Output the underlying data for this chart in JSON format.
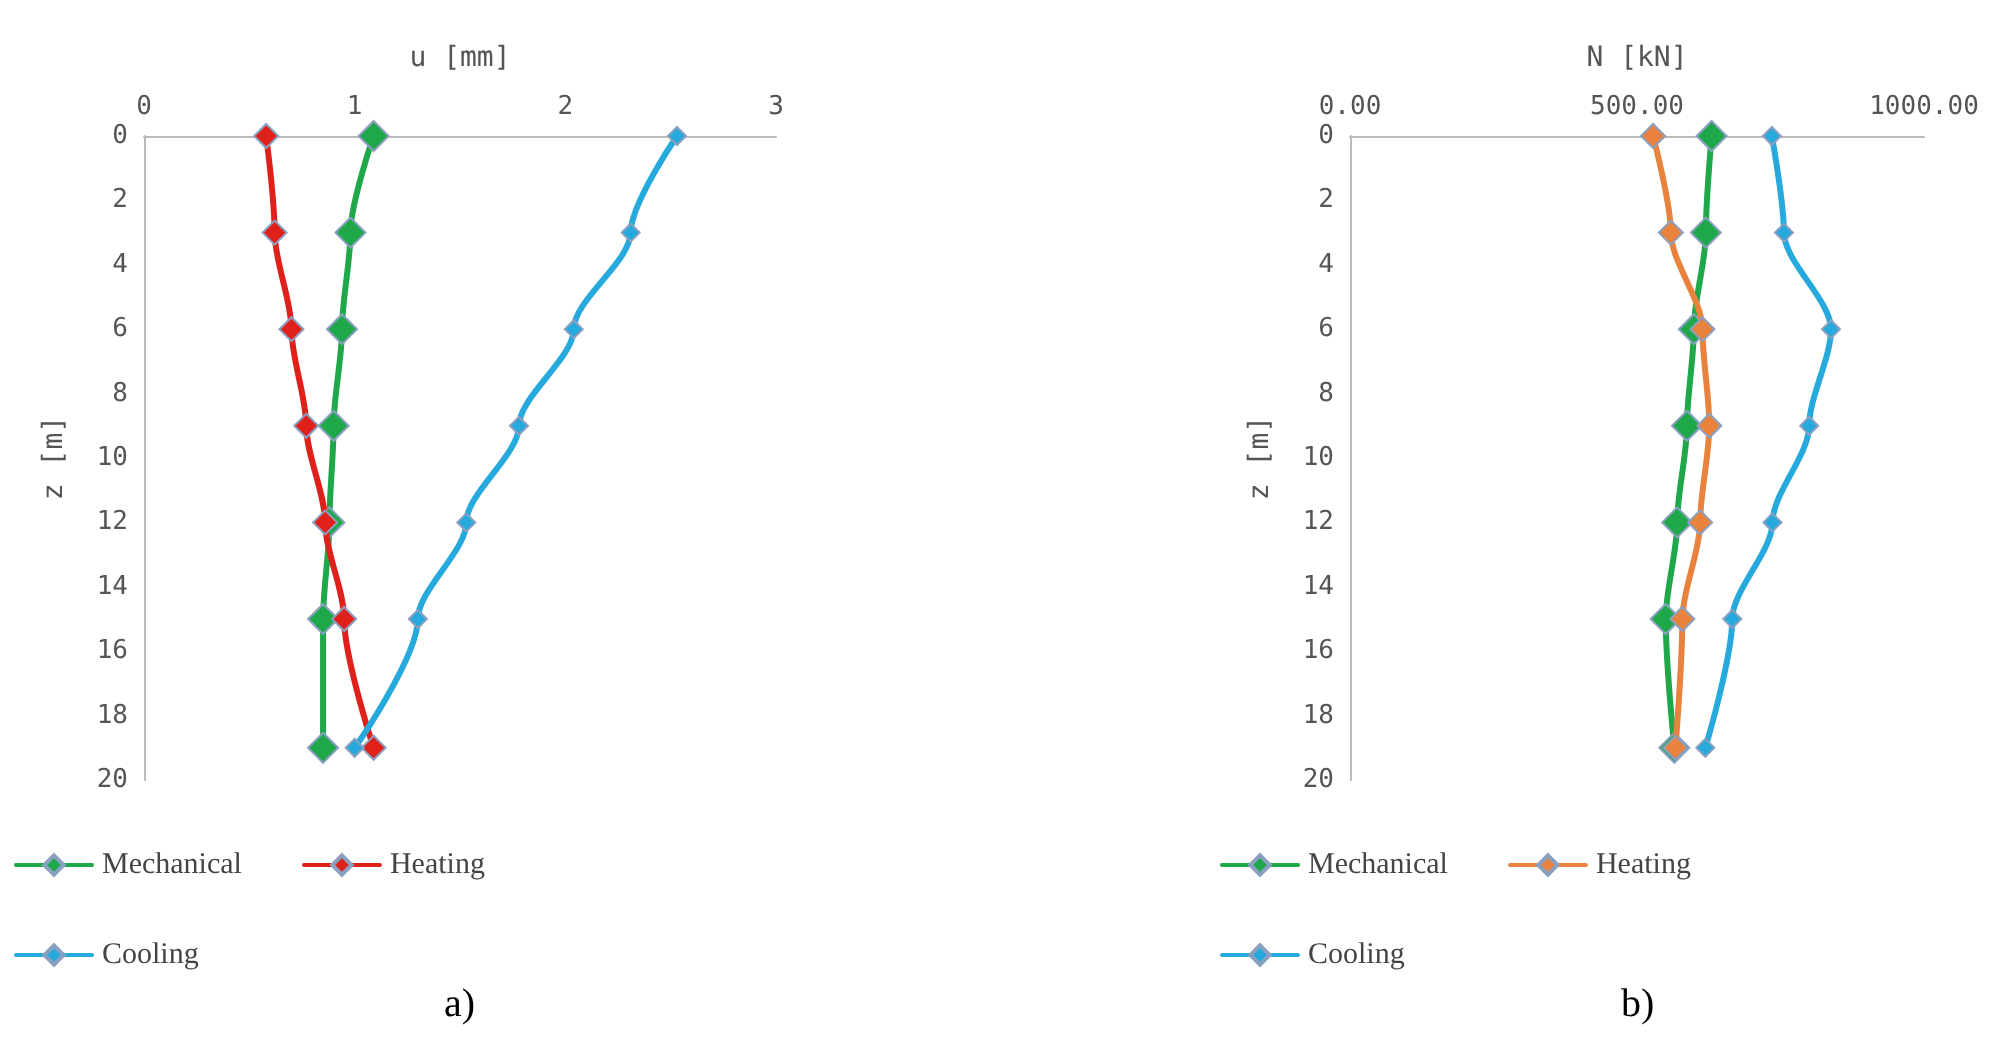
{
  "chart_data": [
    {
      "type": "line",
      "xlabel": "u [mm]",
      "ylabel": "z [m]",
      "xlim": [
        0,
        3
      ],
      "xticks": [
        0,
        1,
        2,
        3
      ],
      "ylim": [
        20,
        0
      ],
      "yticks": [
        0,
        2,
        4,
        6,
        8,
        10,
        12,
        14,
        16,
        18,
        20
      ],
      "marker": "diamond",
      "legend": "bottom left",
      "grid": false,
      "annotations": [
        "a)"
      ],
      "series": [
        {
          "name": "Mechanical",
          "color": "#1ea84a",
          "x": [
            1.09,
            0.98,
            0.94,
            0.9,
            0.88,
            0.85,
            0.85
          ],
          "values": [
            0,
            3,
            6,
            9,
            12,
            15,
            19
          ]
        },
        {
          "name": "Heating",
          "color": "#e0201b",
          "x": [
            0.58,
            0.62,
            0.7,
            0.77,
            0.86,
            0.95,
            1.09
          ],
          "values": [
            0,
            3,
            6,
            9,
            12,
            15,
            19
          ]
        },
        {
          "name": "Cooling",
          "color": "#26a9dc",
          "x": [
            2.53,
            2.31,
            2.04,
            1.78,
            1.53,
            1.3,
            1.0
          ],
          "values": [
            0,
            3,
            6,
            9,
            12,
            15,
            19
          ]
        }
      ]
    },
    {
      "type": "line",
      "xlabel": "N [kN]",
      "ylabel": "z [m]",
      "xlim": [
        0,
        1000
      ],
      "xticks": [
        {
          "value": 0,
          "label": "0.00"
        },
        {
          "value": 500,
          "label": "500.00"
        },
        {
          "value": 1000,
          "label": "1000.00"
        }
      ],
      "ylim": [
        20,
        0
      ],
      "yticks": [
        0,
        2,
        4,
        6,
        8,
        10,
        12,
        14,
        16,
        18,
        20
      ],
      "marker": "diamond",
      "legend": "bottom left",
      "grid": false,
      "annotations": [
        "b)"
      ],
      "series": [
        {
          "name": "Mechanical",
          "color": "#1ea84a",
          "x": [
            630,
            620,
            599,
            587,
            570,
            550,
            565
          ],
          "values": [
            0,
            3,
            6,
            9,
            12,
            15,
            19
          ]
        },
        {
          "name": "Heating",
          "color": "#e8823c",
          "x": [
            528,
            559,
            614,
            626,
            610,
            579,
            567
          ],
          "values": [
            0,
            3,
            6,
            9,
            12,
            15,
            19
          ]
        },
        {
          "name": "Cooling",
          "color": "#26a9dc",
          "x": [
            735,
            756,
            838,
            800,
            736,
            666,
            619
          ],
          "values": [
            0,
            3,
            6,
            9,
            12,
            15,
            19
          ]
        }
      ]
    }
  ]
}
